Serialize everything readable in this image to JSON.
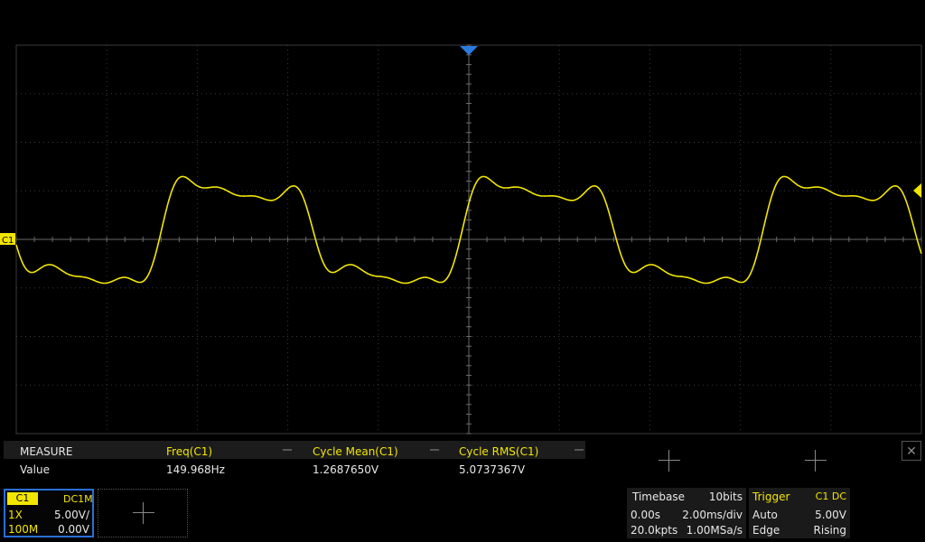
{
  "channel_marker": {
    "label": "C1"
  },
  "measure": {
    "header_label": "MEASURE",
    "row_label": "Value",
    "items": [
      {
        "name": "Freq(C1)",
        "value": "149.968Hz"
      },
      {
        "name": "Cycle Mean(C1)",
        "value": "1.2687650V"
      },
      {
        "name": "Cycle RMS(C1)",
        "value": "5.0737367V"
      }
    ],
    "close_label": "✕"
  },
  "channel": {
    "name": "C1",
    "coupling": "DC1M",
    "probe": "1X",
    "scale": "5.00V/",
    "bandwidth": "100M",
    "offset": "0.00V"
  },
  "timebase": {
    "title": "Timebase",
    "bits": "10bits",
    "delay": "0.00s",
    "scale": "2.00ms/div",
    "points": "20.0kpts",
    "rate": "1.00MSa/s"
  },
  "trigger": {
    "title": "Trigger",
    "source": "C1 DC",
    "mode": "Auto",
    "level": "5.00V",
    "type": "Edge",
    "slope": "Rising"
  },
  "colors": {
    "trace": "#f2e600",
    "accent": "#2a6fd6",
    "trigger_marker": "#2a7be0"
  }
}
